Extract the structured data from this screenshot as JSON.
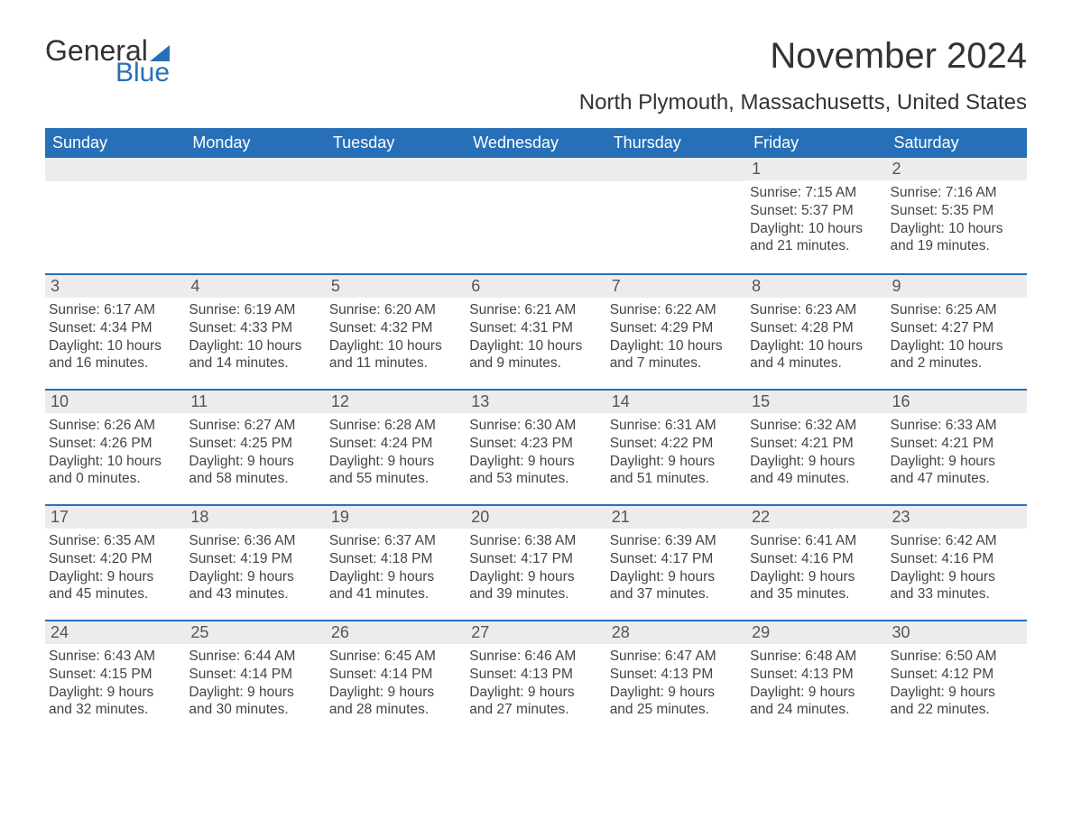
{
  "logo": {
    "text1": "General",
    "text2": "Blue"
  },
  "title": "November 2024",
  "subtitle": "North Plymouth, Massachusetts, United States",
  "colors": {
    "brand_blue": "#2770b8",
    "header_text": "#ffffff",
    "daynum_bg": "#ececec",
    "daynum_fg": "#555555",
    "body_fg": "#444444",
    "page_bg": "#ffffff",
    "title_fg": "#333333"
  },
  "typography": {
    "title_fontsize": 40,
    "subtitle_fontsize": 24,
    "weekday_fontsize": 18,
    "daynum_fontsize": 18,
    "body_fontsize": 15.5,
    "font_family": "Arial"
  },
  "weekdays": [
    "Sunday",
    "Monday",
    "Tuesday",
    "Wednesday",
    "Thursday",
    "Friday",
    "Saturday"
  ],
  "weeks": [
    [
      {
        "n": "",
        "sr": "",
        "ss": "",
        "dl1": "",
        "dl2": ""
      },
      {
        "n": "",
        "sr": "",
        "ss": "",
        "dl1": "",
        "dl2": ""
      },
      {
        "n": "",
        "sr": "",
        "ss": "",
        "dl1": "",
        "dl2": ""
      },
      {
        "n": "",
        "sr": "",
        "ss": "",
        "dl1": "",
        "dl2": ""
      },
      {
        "n": "",
        "sr": "",
        "ss": "",
        "dl1": "",
        "dl2": ""
      },
      {
        "n": "1",
        "sr": "Sunrise: 7:15 AM",
        "ss": "Sunset: 5:37 PM",
        "dl1": "Daylight: 10 hours",
        "dl2": "and 21 minutes."
      },
      {
        "n": "2",
        "sr": "Sunrise: 7:16 AM",
        "ss": "Sunset: 5:35 PM",
        "dl1": "Daylight: 10 hours",
        "dl2": "and 19 minutes."
      }
    ],
    [
      {
        "n": "3",
        "sr": "Sunrise: 6:17 AM",
        "ss": "Sunset: 4:34 PM",
        "dl1": "Daylight: 10 hours",
        "dl2": "and 16 minutes."
      },
      {
        "n": "4",
        "sr": "Sunrise: 6:19 AM",
        "ss": "Sunset: 4:33 PM",
        "dl1": "Daylight: 10 hours",
        "dl2": "and 14 minutes."
      },
      {
        "n": "5",
        "sr": "Sunrise: 6:20 AM",
        "ss": "Sunset: 4:32 PM",
        "dl1": "Daylight: 10 hours",
        "dl2": "and 11 minutes."
      },
      {
        "n": "6",
        "sr": "Sunrise: 6:21 AM",
        "ss": "Sunset: 4:31 PM",
        "dl1": "Daylight: 10 hours",
        "dl2": "and 9 minutes."
      },
      {
        "n": "7",
        "sr": "Sunrise: 6:22 AM",
        "ss": "Sunset: 4:29 PM",
        "dl1": "Daylight: 10 hours",
        "dl2": "and 7 minutes."
      },
      {
        "n": "8",
        "sr": "Sunrise: 6:23 AM",
        "ss": "Sunset: 4:28 PM",
        "dl1": "Daylight: 10 hours",
        "dl2": "and 4 minutes."
      },
      {
        "n": "9",
        "sr": "Sunrise: 6:25 AM",
        "ss": "Sunset: 4:27 PM",
        "dl1": "Daylight: 10 hours",
        "dl2": "and 2 minutes."
      }
    ],
    [
      {
        "n": "10",
        "sr": "Sunrise: 6:26 AM",
        "ss": "Sunset: 4:26 PM",
        "dl1": "Daylight: 10 hours",
        "dl2": "and 0 minutes."
      },
      {
        "n": "11",
        "sr": "Sunrise: 6:27 AM",
        "ss": "Sunset: 4:25 PM",
        "dl1": "Daylight: 9 hours",
        "dl2": "and 58 minutes."
      },
      {
        "n": "12",
        "sr": "Sunrise: 6:28 AM",
        "ss": "Sunset: 4:24 PM",
        "dl1": "Daylight: 9 hours",
        "dl2": "and 55 minutes."
      },
      {
        "n": "13",
        "sr": "Sunrise: 6:30 AM",
        "ss": "Sunset: 4:23 PM",
        "dl1": "Daylight: 9 hours",
        "dl2": "and 53 minutes."
      },
      {
        "n": "14",
        "sr": "Sunrise: 6:31 AM",
        "ss": "Sunset: 4:22 PM",
        "dl1": "Daylight: 9 hours",
        "dl2": "and 51 minutes."
      },
      {
        "n": "15",
        "sr": "Sunrise: 6:32 AM",
        "ss": "Sunset: 4:21 PM",
        "dl1": "Daylight: 9 hours",
        "dl2": "and 49 minutes."
      },
      {
        "n": "16",
        "sr": "Sunrise: 6:33 AM",
        "ss": "Sunset: 4:21 PM",
        "dl1": "Daylight: 9 hours",
        "dl2": "and 47 minutes."
      }
    ],
    [
      {
        "n": "17",
        "sr": "Sunrise: 6:35 AM",
        "ss": "Sunset: 4:20 PM",
        "dl1": "Daylight: 9 hours",
        "dl2": "and 45 minutes."
      },
      {
        "n": "18",
        "sr": "Sunrise: 6:36 AM",
        "ss": "Sunset: 4:19 PM",
        "dl1": "Daylight: 9 hours",
        "dl2": "and 43 minutes."
      },
      {
        "n": "19",
        "sr": "Sunrise: 6:37 AM",
        "ss": "Sunset: 4:18 PM",
        "dl1": "Daylight: 9 hours",
        "dl2": "and 41 minutes."
      },
      {
        "n": "20",
        "sr": "Sunrise: 6:38 AM",
        "ss": "Sunset: 4:17 PM",
        "dl1": "Daylight: 9 hours",
        "dl2": "and 39 minutes."
      },
      {
        "n": "21",
        "sr": "Sunrise: 6:39 AM",
        "ss": "Sunset: 4:17 PM",
        "dl1": "Daylight: 9 hours",
        "dl2": "and 37 minutes."
      },
      {
        "n": "22",
        "sr": "Sunrise: 6:41 AM",
        "ss": "Sunset: 4:16 PM",
        "dl1": "Daylight: 9 hours",
        "dl2": "and 35 minutes."
      },
      {
        "n": "23",
        "sr": "Sunrise: 6:42 AM",
        "ss": "Sunset: 4:16 PM",
        "dl1": "Daylight: 9 hours",
        "dl2": "and 33 minutes."
      }
    ],
    [
      {
        "n": "24",
        "sr": "Sunrise: 6:43 AM",
        "ss": "Sunset: 4:15 PM",
        "dl1": "Daylight: 9 hours",
        "dl2": "and 32 minutes."
      },
      {
        "n": "25",
        "sr": "Sunrise: 6:44 AM",
        "ss": "Sunset: 4:14 PM",
        "dl1": "Daylight: 9 hours",
        "dl2": "and 30 minutes."
      },
      {
        "n": "26",
        "sr": "Sunrise: 6:45 AM",
        "ss": "Sunset: 4:14 PM",
        "dl1": "Daylight: 9 hours",
        "dl2": "and 28 minutes."
      },
      {
        "n": "27",
        "sr": "Sunrise: 6:46 AM",
        "ss": "Sunset: 4:13 PM",
        "dl1": "Daylight: 9 hours",
        "dl2": "and 27 minutes."
      },
      {
        "n": "28",
        "sr": "Sunrise: 6:47 AM",
        "ss": "Sunset: 4:13 PM",
        "dl1": "Daylight: 9 hours",
        "dl2": "and 25 minutes."
      },
      {
        "n": "29",
        "sr": "Sunrise: 6:48 AM",
        "ss": "Sunset: 4:13 PM",
        "dl1": "Daylight: 9 hours",
        "dl2": "and 24 minutes."
      },
      {
        "n": "30",
        "sr": "Sunrise: 6:50 AM",
        "ss": "Sunset: 4:12 PM",
        "dl1": "Daylight: 9 hours",
        "dl2": "and 22 minutes."
      }
    ]
  ]
}
